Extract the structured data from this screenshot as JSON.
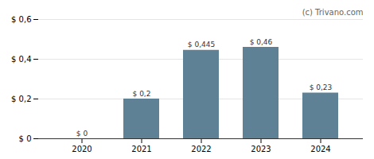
{
  "chart_data": {
    "type": "bar",
    "categories": [
      "2020",
      "2021",
      "2022",
      "2023",
      "2024"
    ],
    "values": [
      0.0,
      0.2,
      0.445,
      0.46,
      0.23
    ],
    "value_labels": [
      "$ 0",
      "$ 0,2",
      "$ 0,445",
      "$ 0,46",
      "$ 0,23"
    ],
    "color": "#5f8195",
    "ylim": [
      0,
      0.6
    ],
    "yticks": [
      {
        "value": 0.0,
        "label": "$ 0"
      },
      {
        "value": 0.2,
        "label": "$ 0,2"
      },
      {
        "value": 0.4,
        "label": "$ 0,4"
      },
      {
        "value": 0.6,
        "label": "$ 0,6"
      }
    ],
    "grid": true,
    "data_labels": true,
    "annotations": [
      "(c) Trivano.com"
    ]
  }
}
